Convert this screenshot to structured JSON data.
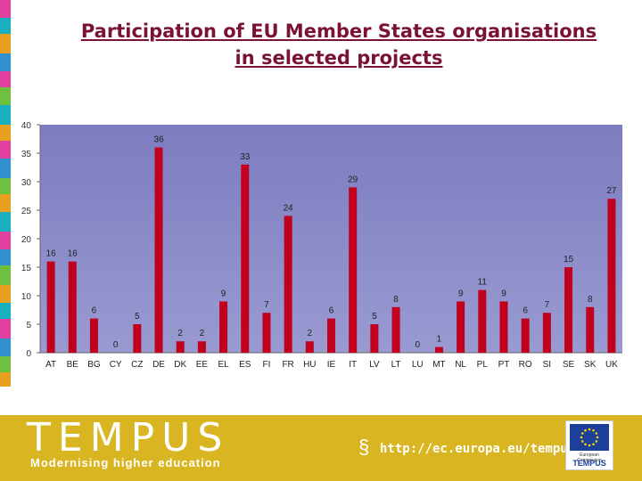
{
  "title_line1": "Participation of EU Member States organisations",
  "title_line2": "in selected projects",
  "chart_data": {
    "type": "bar",
    "categories": [
      "AT",
      "BE",
      "BG",
      "CY",
      "CZ",
      "DE",
      "DK",
      "EE",
      "EL",
      "ES",
      "FI",
      "FR",
      "HU",
      "IE",
      "IT",
      "LV",
      "LT",
      "LU",
      "MT",
      "NL",
      "PL",
      "PT",
      "RO",
      "SI",
      "SE",
      "SK",
      "UK"
    ],
    "values": [
      16,
      16,
      6,
      0,
      5,
      36,
      2,
      2,
      9,
      33,
      7,
      24,
      2,
      6,
      29,
      5,
      8,
      0,
      1,
      9,
      11,
      9,
      6,
      7,
      15,
      8,
      27
    ],
    "yticks": [
      0,
      5,
      10,
      15,
      20,
      25,
      30,
      35,
      40
    ],
    "ylim": [
      0,
      40
    ],
    "bar_color": "#c0001c",
    "plot_background": "#8b8bc8"
  },
  "footer": {
    "brand": "TEMPUS",
    "tagline": "Modernising higher education",
    "url": "http://ec.europa.eu/tempus",
    "badge_small": "European Commission",
    "badge_brand": "TEMPUS"
  }
}
